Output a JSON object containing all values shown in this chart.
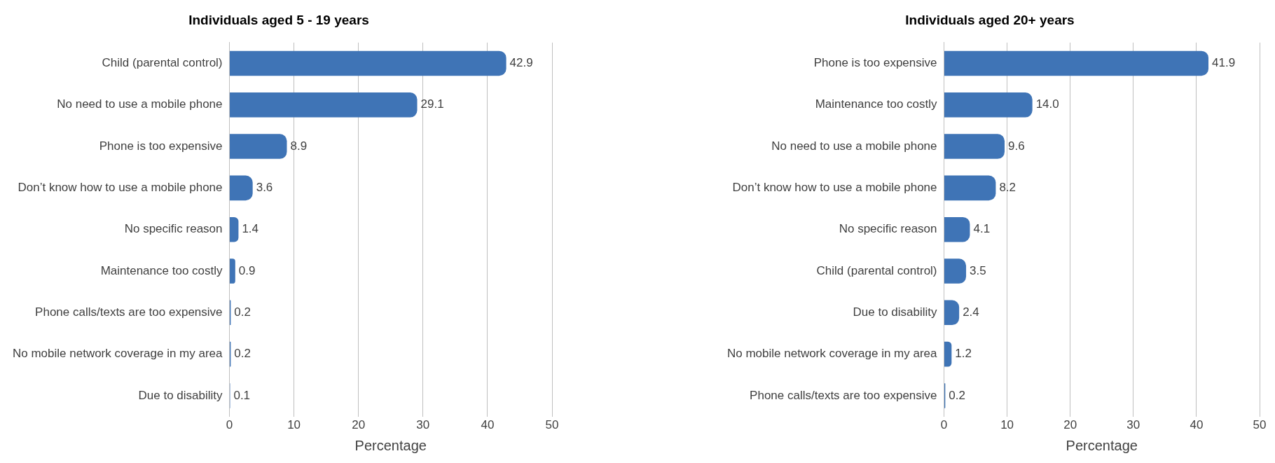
{
  "chart_data": [
    {
      "type": "bar",
      "orientation": "horizontal",
      "title": "Individuals aged 5 - 19 years",
      "xlabel": "Percentage",
      "categories": [
        "Child (parental control)",
        "No need to use a mobile phone",
        "Phone is too expensive",
        "Don’t know how to use a mobile phone",
        "No specific reason",
        "Maintenance too costly",
        "Phone calls/texts are too expensive",
        "No mobile network coverage in my area",
        "Due to disability"
      ],
      "values": [
        42.9,
        29.1,
        8.9,
        3.6,
        1.4,
        0.9,
        0.2,
        0.2,
        0.1
      ],
      "value_labels": [
        "42.9",
        "29.1",
        "8.9",
        "3.6",
        "1.4",
        "0.9",
        "0.2",
        "0.2",
        "0.1"
      ],
      "color": "#3f74b6",
      "xlim": [
        0,
        50
      ],
      "xticks": [
        0,
        10,
        20,
        30,
        40,
        50
      ],
      "grid": "x"
    },
    {
      "type": "bar",
      "orientation": "horizontal",
      "title": "Individuals aged 20+ years",
      "xlabel": "Percentage",
      "categories": [
        "Phone is too expensive",
        "Maintenance too costly",
        "No need to use a mobile phone",
        "Don’t know how to use a mobile phone",
        "No specific reason",
        "Child (parental control)",
        "Due to disability",
        "No mobile network coverage in my area",
        "Phone calls/texts are too expensive"
      ],
      "values": [
        41.9,
        14.0,
        9.6,
        8.2,
        4.1,
        3.5,
        2.4,
        1.2,
        0.2
      ],
      "value_labels": [
        "41.9",
        "14.0",
        "9.6",
        "8.2",
        "4.1",
        "3.5",
        "2.4",
        "1.2",
        "0.2"
      ],
      "color": "#3f74b6",
      "xlim": [
        0,
        50
      ],
      "xticks": [
        0,
        10,
        20,
        30,
        40,
        50
      ],
      "grid": "x"
    }
  ]
}
